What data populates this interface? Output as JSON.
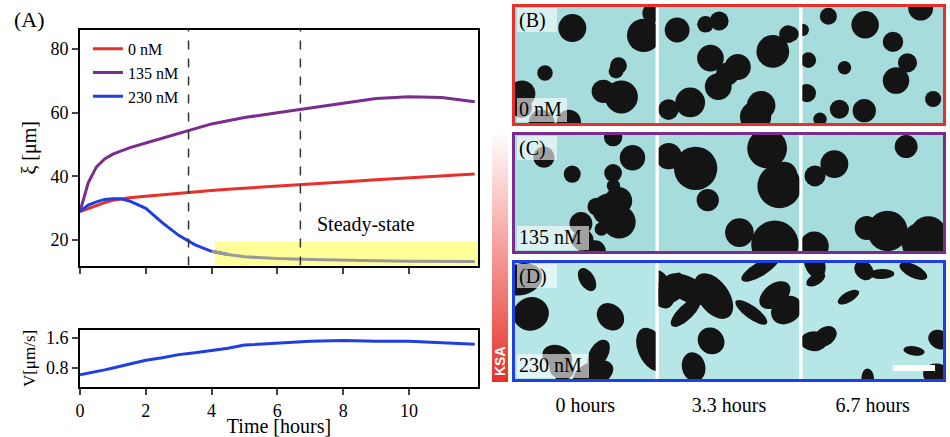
{
  "chart_data": [
    {
      "type": "line",
      "panel": "(A)",
      "x": [
        0,
        0.25,
        0.5,
        0.75,
        1,
        1.25,
        1.5,
        2,
        2.5,
        3,
        3.5,
        4,
        4.5,
        5,
        6,
        7,
        8,
        9,
        10,
        11,
        12
      ],
      "series": [
        {
          "name": "0 nM",
          "color": "#e8302a",
          "values": [
            29,
            30,
            31,
            31.8,
            32.5,
            33,
            33.3,
            33.8,
            34.3,
            34.8,
            35.2,
            35.6,
            36,
            36.3,
            37,
            37.6,
            38.3,
            39,
            39.6,
            40.2,
            40.8
          ]
        },
        {
          "name": "135 nM",
          "color": "#7b2d8e",
          "values": [
            29,
            38,
            43,
            45.5,
            47,
            48,
            49,
            50.5,
            52,
            53.5,
            55,
            56.5,
            57.5,
            58.5,
            60,
            61.5,
            63,
            64.5,
            65,
            64.8,
            63.5
          ]
        },
        {
          "name": "230 nM",
          "color": "#1f3fe0",
          "values": [
            29,
            31,
            32,
            32.8,
            33,
            33,
            32.3,
            30,
            25.5,
            21.5,
            18.5,
            16.5,
            15.5,
            14.8,
            14.2,
            13.9,
            13.6,
            13.5,
            13.4,
            13.4,
            13.3
          ]
        }
      ],
      "xlim": [
        0,
        12.1
      ],
      "xticks": [
        0,
        2,
        4,
        6,
        8,
        10
      ],
      "ylim": [
        12,
        86
      ],
      "yticks": [
        20,
        40,
        60,
        80
      ],
      "ylabel": "ξ [μm]",
      "legend": "upper left",
      "tick_labels": "y",
      "vlines": [
        3.3,
        6.7
      ],
      "region": {
        "label": "Steady-state",
        "series": "230 nM",
        "xlim": [
          4.1,
          12.1
        ],
        "ylim": [
          12,
          19.5
        ],
        "color": "#ffff99",
        "line_color": "#999999"
      }
    },
    {
      "type": "line",
      "x": [
        0,
        0.25,
        0.5,
        0.75,
        1,
        1.25,
        1.5,
        2,
        2.5,
        3,
        3.5,
        4,
        4.5,
        5,
        6,
        7,
        8,
        9,
        10,
        11,
        12
      ],
      "values": [
        0.62,
        0.66,
        0.7,
        0.75,
        0.8,
        0.85,
        0.9,
        1.0,
        1.07,
        1.15,
        1.2,
        1.25,
        1.32,
        1.4,
        1.45,
        1.5,
        1.52,
        1.5,
        1.5,
        1.47,
        1.42
      ],
      "color": "#1f3fe0",
      "xlim": [
        0,
        12.1
      ],
      "xticks": [
        0,
        2,
        4,
        6,
        8,
        10
      ],
      "ylim": [
        0.3,
        1.8
      ],
      "yticks": [
        0.8,
        1.6
      ],
      "xlabel": "Time [hours]",
      "ylabel": "V[μm/s]"
    }
  ],
  "micrographs": {
    "side_label": "KSA",
    "times": [
      "0 hours",
      "3.3 hours",
      "6.7 hours"
    ],
    "rows": [
      {
        "letter": "(B)",
        "label": "0 nM",
        "color": "#e8302a"
      },
      {
        "letter": "(C)",
        "label": "135 nM",
        "color": "#7b2d8e"
      },
      {
        "letter": "(D)",
        "label": "230 nM",
        "color": "#1f3fe0"
      }
    ]
  }
}
